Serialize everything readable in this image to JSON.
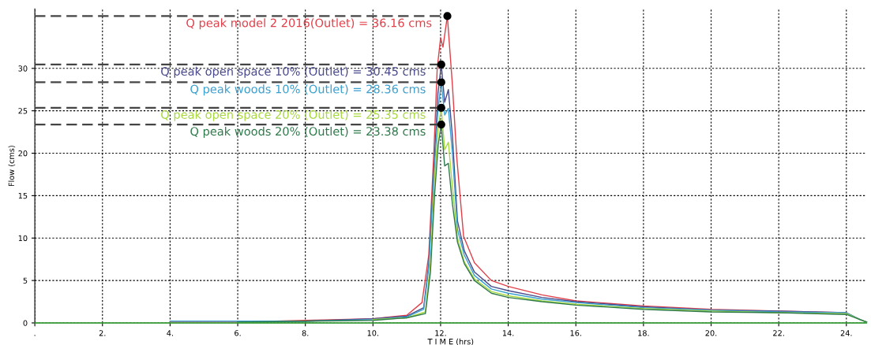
{
  "chart_data": {
    "type": "line",
    "xlabel": "T I M E (hrs)",
    "ylabel": "Flow (cms)",
    "xlim": [
      0,
      24.6
    ],
    "ylim": [
      0,
      37
    ],
    "xticks": [
      {
        "value": 0,
        "label": "."
      },
      {
        "value": 2,
        "label": "2."
      },
      {
        "value": 4,
        "label": "4."
      },
      {
        "value": 6,
        "label": "6."
      },
      {
        "value": 8,
        "label": "8."
      },
      {
        "value": 10,
        "label": "10."
      },
      {
        "value": 12,
        "label": "12."
      },
      {
        "value": 14,
        "label": "14."
      },
      {
        "value": 16,
        "label": "16."
      },
      {
        "value": 18,
        "label": "18."
      },
      {
        "value": 20,
        "label": "20."
      },
      {
        "value": 22,
        "label": "22."
      },
      {
        "value": 24,
        "label": "24."
      }
    ],
    "yticks": [
      0,
      5,
      10,
      15,
      20,
      25,
      30
    ],
    "grid": true,
    "legend": false,
    "marker": "none",
    "line_style": "solid",
    "series": [
      {
        "color": "#e0404a",
        "x": [
          4,
          6,
          8,
          10,
          11,
          11.45,
          11.65,
          11.8,
          11.9,
          12.0,
          12.07,
          12.2,
          12.35,
          12.48,
          12.68,
          13,
          13.5,
          14,
          15,
          16,
          18,
          20,
          22,
          24
        ],
        "values": [
          0.1,
          0.1,
          0.3,
          0.5,
          0.9,
          2.4,
          8,
          20,
          30,
          33.6,
          32.5,
          36.16,
          28,
          19.4,
          10.2,
          7.1,
          5,
          4.3,
          3.3,
          2.6,
          2.0,
          1.6,
          1.4,
          1.2
        ]
      },
      {
        "color": "#4a4a8c",
        "x": [
          6,
          8,
          10,
          11,
          11.5,
          11.65,
          11.8,
          11.92,
          12.02,
          12.12,
          12.23,
          12.35,
          12.5,
          12.7,
          13,
          13.5,
          14,
          15,
          16,
          18,
          20,
          22,
          24,
          24.4,
          24.6
        ],
        "values": [
          0.1,
          0.2,
          0.5,
          0.8,
          1.8,
          7,
          18,
          27,
          30.45,
          26,
          27.5,
          22,
          12,
          8.5,
          6,
          4.3,
          3.8,
          3.0,
          2.5,
          1.9,
          1.5,
          1.4,
          1.2,
          0.4,
          0.1
        ]
      },
      {
        "color": "#3aa0d0",
        "x": [
          4,
          6,
          8,
          10,
          11,
          11.5,
          11.65,
          11.8,
          11.92,
          12.02,
          12.12,
          12.23,
          12.35,
          12.5,
          12.7,
          13,
          13.5,
          14,
          15,
          16,
          18,
          20,
          22,
          24,
          24.4,
          24.6
        ],
        "values": [
          0.2,
          0.2,
          0.2,
          0.4,
          0.7,
          1.6,
          6.5,
          17,
          25,
          28.36,
          24.5,
          25.3,
          20,
          11,
          8,
          5.6,
          4.0,
          3.5,
          2.8,
          2.4,
          1.8,
          1.5,
          1.3,
          1.2,
          0.4,
          0.1
        ]
      },
      {
        "color": "#a8d840",
        "x": [
          10,
          11,
          11.55,
          11.7,
          11.82,
          11.93,
          12.02,
          12.12,
          12.23,
          12.35,
          12.5,
          12.7,
          13,
          13.5,
          14,
          15,
          16,
          18,
          20,
          22,
          24,
          24.4,
          24.6
        ],
        "values": [
          0.4,
          0.6,
          1.3,
          7,
          17,
          23,
          25.35,
          20.4,
          21.3,
          16,
          10,
          7.2,
          5.2,
          3.7,
          3.2,
          2.6,
          2.2,
          1.7,
          1.4,
          1.2,
          1.1,
          0.4,
          0.1
        ]
      },
      {
        "color": "#2e7a4a",
        "x": [
          6,
          8,
          10,
          11,
          11.55,
          11.7,
          11.82,
          11.93,
          12.02,
          12.12,
          12.23,
          12.35,
          12.5,
          12.7,
          13,
          13.5,
          14,
          15,
          16,
          18,
          20,
          22,
          24,
          24.4,
          24.6
        ],
        "values": [
          0.1,
          0.2,
          0.3,
          0.6,
          1.1,
          6,
          15,
          21,
          23.38,
          18.5,
          18.8,
          14,
          9.5,
          7,
          5,
          3.5,
          3.0,
          2.5,
          2.1,
          1.6,
          1.3,
          1.2,
          1.0,
          0.4,
          0.1
        ]
      },
      {
        "color": "#3cb43c",
        "x": [
          0,
          24.6
        ],
        "values": [
          0,
          0
        ]
      },
      {
        "name": "Q peak model 2 2016(Outlet) = 36.16 cms",
        "color": "#444444",
        "line_style": "dashed",
        "x": [
          0,
          12.2
        ],
        "values": [
          36.16,
          36.16
        ]
      },
      {
        "name": "Q peak open space 10% (Outlet) = 30.45 cms",
        "color": "#444444",
        "line_style": "dashed",
        "x": [
          0,
          12.02
        ],
        "values": [
          30.45,
          30.45
        ]
      },
      {
        "name": "Q peak woods 10% (Outlet) = 28.36 cms",
        "color": "#444444",
        "line_style": "dashed",
        "x": [
          0,
          12.02
        ],
        "values": [
          28.36,
          28.36
        ]
      },
      {
        "name": "Q peak open space 20% (Outlet) = 25.35 cms",
        "color": "#444444",
        "line_style": "dashed",
        "x": [
          0,
          12.02
        ],
        "values": [
          25.35,
          25.35
        ]
      },
      {
        "name": "Q peak woods 20% (Outlet) = 23.38 cms",
        "color": "#444444",
        "line_style": "dashed",
        "x": [
          0,
          12.02
        ],
        "values": [
          23.38,
          23.38
        ]
      },
      {
        "type": "scatter",
        "color": "#000000",
        "marker": "circle",
        "x": [
          12.2,
          12.02,
          12.02,
          12.02,
          12.02
        ],
        "values": [
          36.16,
          30.45,
          28.36,
          25.35,
          23.38
        ]
      }
    ]
  }
}
